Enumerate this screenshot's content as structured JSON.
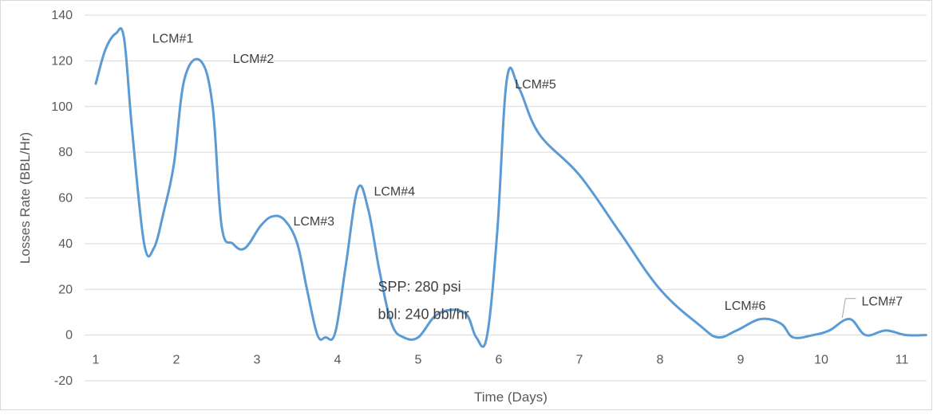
{
  "chart_data": {
    "type": "line",
    "title": "",
    "xlabel": "Time (Days)",
    "ylabel": "Losses Rate (BBL/Hr)",
    "ylim": [
      -20,
      140
    ],
    "xlim": [
      1,
      11
    ],
    "yticks": [
      -20,
      0,
      20,
      40,
      60,
      80,
      100,
      120,
      140
    ],
    "xticks": [
      1,
      2,
      3,
      4,
      5,
      6,
      7,
      8,
      9,
      10,
      11
    ],
    "grid": true,
    "line_color": "#5b9bd5",
    "series": [
      {
        "values_x": [
          1.0,
          1.12,
          1.25,
          1.35,
          1.45,
          1.6,
          1.72,
          1.85,
          1.97,
          2.1,
          2.3,
          2.45,
          2.56,
          2.7,
          2.85,
          3.05,
          3.2,
          3.35,
          3.5,
          3.62,
          3.75,
          3.85,
          3.97,
          4.1,
          4.25,
          4.38,
          4.52,
          4.67,
          4.82,
          5.0,
          5.2,
          5.4,
          5.6,
          5.72,
          5.85,
          5.98,
          6.1,
          6.25,
          6.5,
          7.0,
          7.5,
          8.0,
          8.5,
          8.72,
          8.95,
          9.25,
          9.5,
          9.65,
          9.9,
          10.1,
          10.35,
          10.55,
          10.8,
          11.05,
          11.3
        ],
        "values_y": [
          110,
          125,
          132,
          130,
          90,
          40,
          38,
          55,
          75,
          112,
          120,
          100,
          48,
          40,
          38,
          48,
          52,
          50,
          40,
          20,
          0,
          -1,
          1,
          30,
          64,
          55,
          28,
          5,
          -1,
          -1,
          8,
          11,
          9,
          -1,
          -1,
          45,
          112,
          108,
          88,
          70,
          45,
          20,
          4,
          -1,
          2,
          7,
          5,
          -1,
          0,
          2,
          7,
          0,
          2,
          0,
          0
        ]
      }
    ],
    "annotations": [
      {
        "text": "LCM#1",
        "x": 1.7,
        "y": 128
      },
      {
        "text": "LCM#2",
        "x": 2.7,
        "y": 119
      },
      {
        "text": "LCM#3",
        "x": 3.45,
        "y": 48
      },
      {
        "text": "LCM#4",
        "x": 4.45,
        "y": 61
      },
      {
        "text": "LCM#5",
        "x": 6.2,
        "y": 108
      },
      {
        "text": "LCM#6",
        "x": 8.8,
        "y": 11
      },
      {
        "text": "LCM#7",
        "x": 10.5,
        "y": 13
      },
      {
        "text": "SPP: 280 psi",
        "x": 4.5,
        "y": 19
      },
      {
        "text": "bbl: 240 bbl/hr",
        "x": 4.5,
        "y": 7
      }
    ]
  }
}
